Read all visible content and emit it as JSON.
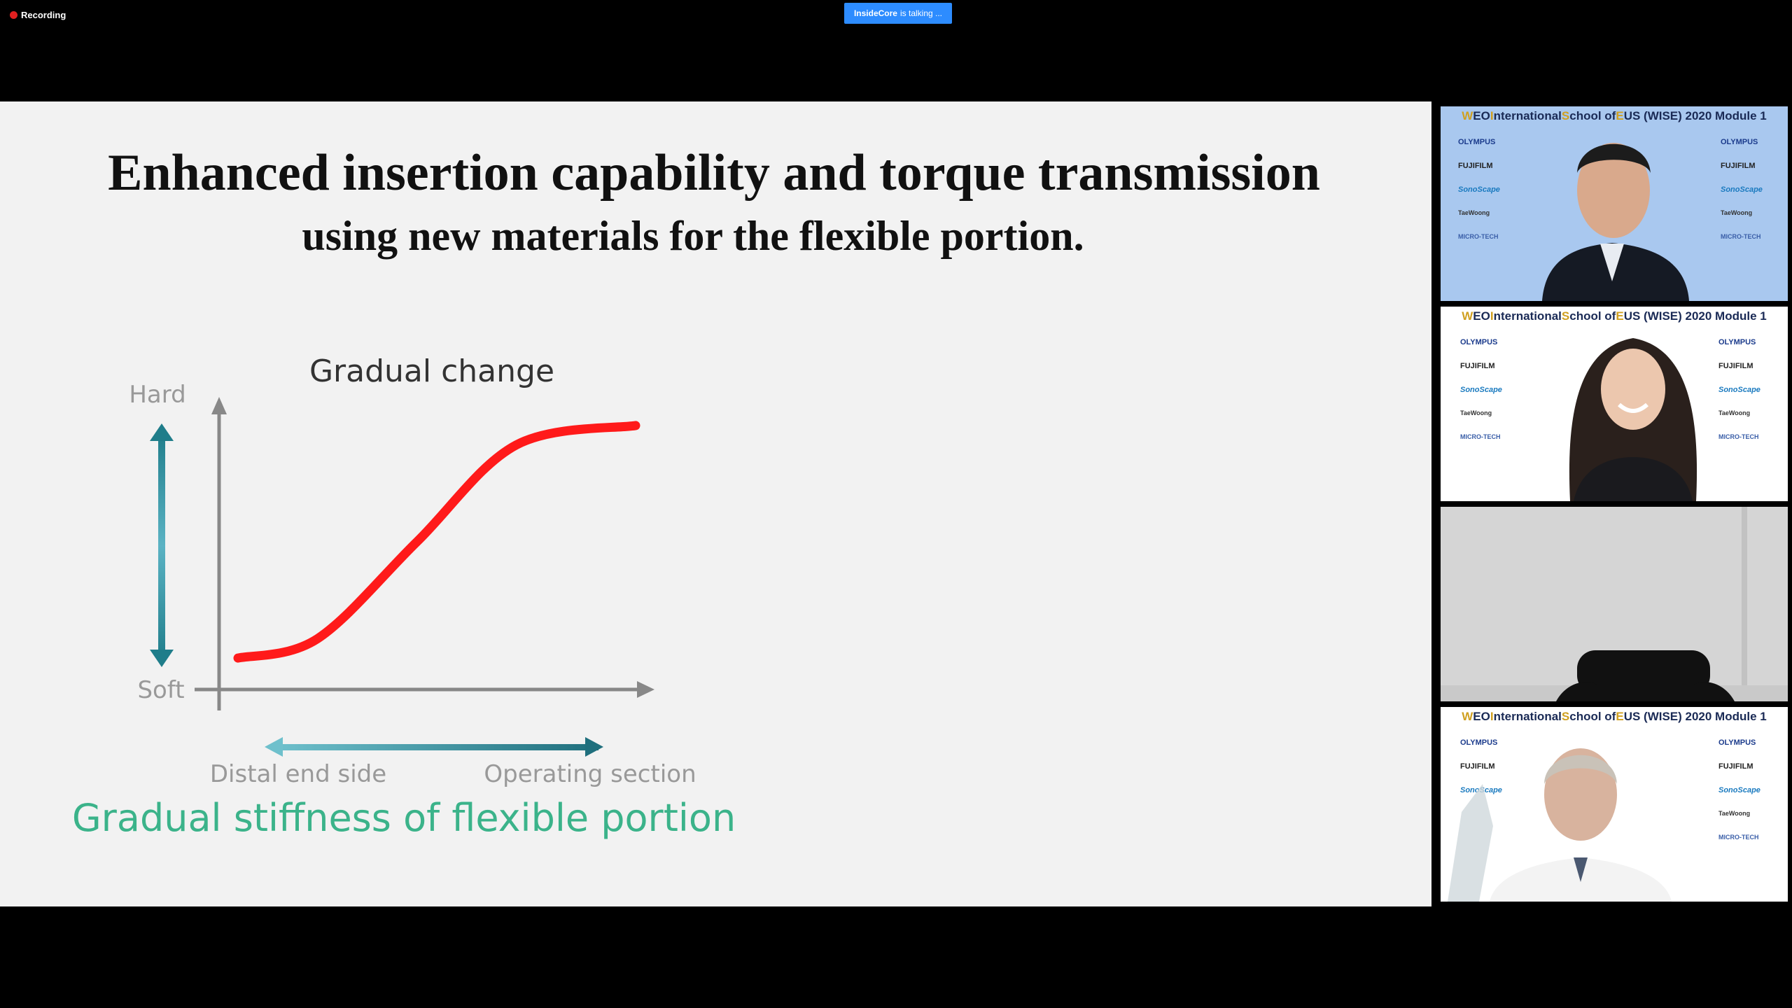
{
  "meeting": {
    "recording_label": "Recording",
    "talking": {
      "name": "InsideCore",
      "suffix": "is talking ..."
    }
  },
  "slide": {
    "title_line1": "Enhanced insertion capability and torque transmission",
    "title_line2": "using new materials for the flexible portion.",
    "chart_data": {
      "type": "line",
      "title": "Gradual change",
      "subtitle": "Gradual stiffness of flexible portion",
      "y_labels": {
        "top": "Hard",
        "bottom": "Soft"
      },
      "x_labels": {
        "left": "Distal end side",
        "right": "Operating section"
      },
      "series": [
        {
          "color": "#ff1a1a",
          "x": [
            0,
            0.2,
            0.45,
            0.7,
            1
          ],
          "y": [
            0.02,
            0.1,
            0.5,
            0.9,
            0.98
          ]
        }
      ],
      "xlim": [
        0,
        1
      ],
      "ylim": [
        0,
        1
      ],
      "grid": false,
      "axis_color": "#888888",
      "arrow_color": "#2a8290",
      "subtitle_color": "#3bb38a"
    }
  },
  "gallery": {
    "banner": {
      "p1": "W",
      "p2": "EO ",
      "p3": "I",
      "p4": "nternational ",
      "p5": "S",
      "p6": "chool of ",
      "p7": "E",
      "p8": "US (WISE) 2020 Module 1"
    },
    "sponsors": [
      "OLYMPUS",
      "FUJIFILM",
      "SonoScape",
      "TaeWoong",
      "MICRO-TECH"
    ],
    "tiles": [
      {
        "background": "#a9c8ef"
      },
      {
        "background": "#ffffff"
      },
      {
        "background": "#d5d5d5"
      },
      {
        "background": "#ffffff"
      }
    ]
  }
}
